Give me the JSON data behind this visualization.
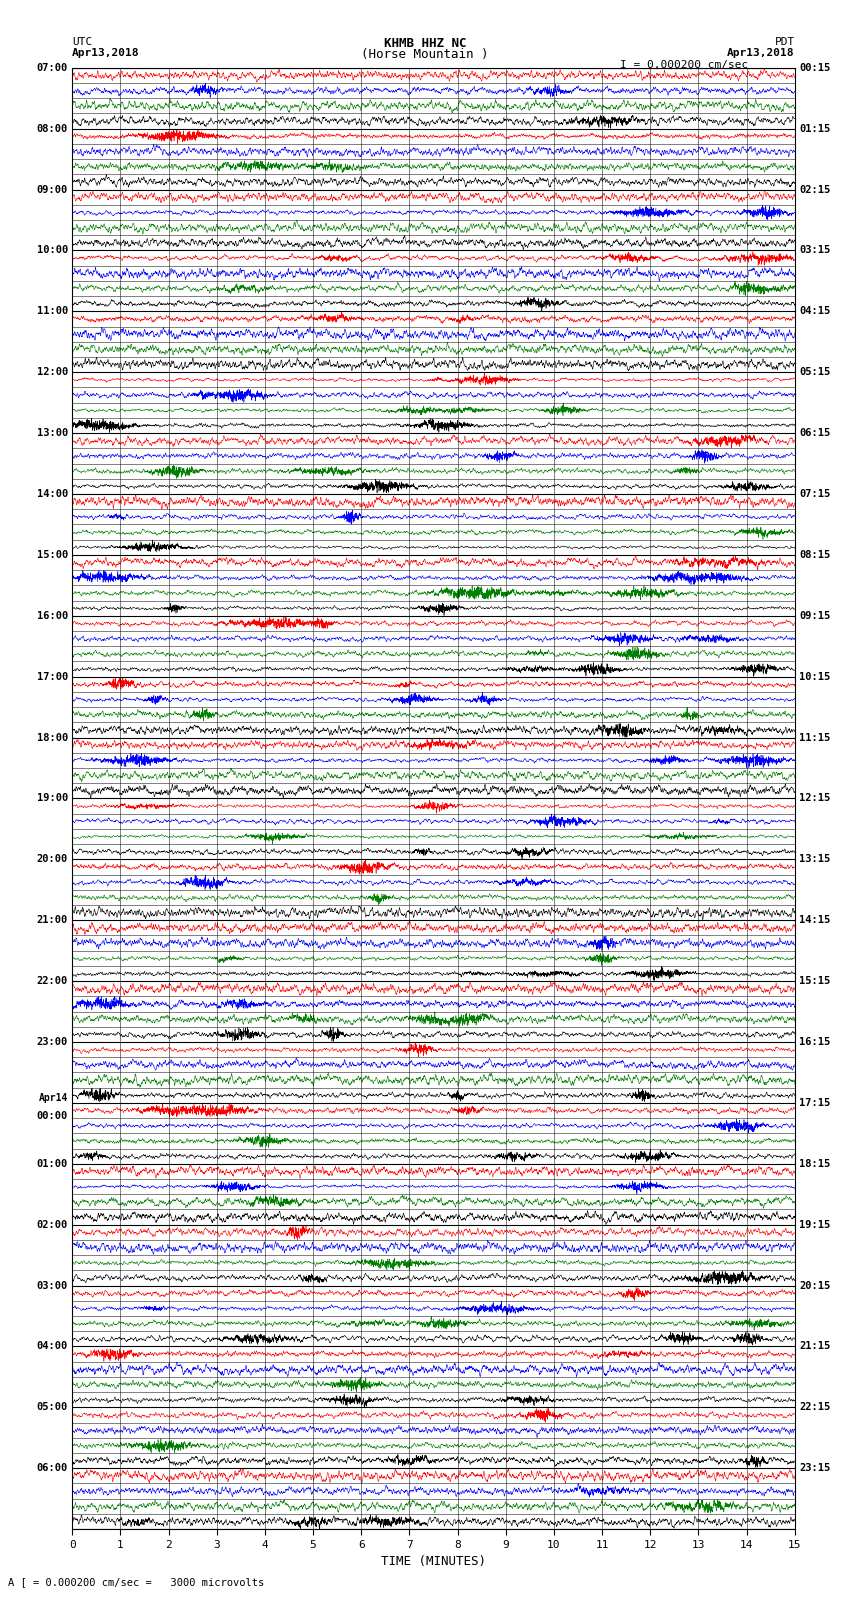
{
  "title_line1": "KHMB HHZ NC",
  "title_line2": "(Horse Mountain )",
  "scale_label": "I = 0.000200 cm/sec",
  "left_label": "UTC",
  "left_date": "Apr13,2018",
  "right_label": "PDT",
  "right_date": "Apr13,2018",
  "bottom_label": "TIME (MINUTES)",
  "bottom_note": "A [ = 0.000200 cm/sec =   3000 microvolts",
  "left_times": [
    "07:00",
    "08:00",
    "09:00",
    "10:00",
    "11:00",
    "12:00",
    "13:00",
    "14:00",
    "15:00",
    "16:00",
    "17:00",
    "18:00",
    "19:00",
    "20:00",
    "21:00",
    "22:00",
    "23:00",
    "Apr14\n00:00",
    "01:00",
    "02:00",
    "03:00",
    "04:00",
    "05:00",
    "06:00"
  ],
  "right_times": [
    "00:15",
    "01:15",
    "02:15",
    "03:15",
    "04:15",
    "05:15",
    "06:15",
    "07:15",
    "08:15",
    "09:15",
    "10:15",
    "11:15",
    "12:15",
    "13:15",
    "14:15",
    "15:15",
    "16:15",
    "17:15",
    "18:15",
    "19:15",
    "20:15",
    "21:15",
    "22:15",
    "23:15"
  ],
  "n_rows": 24,
  "sub_traces": 4,
  "colors": [
    "red",
    "blue",
    "green",
    "black"
  ],
  "bg_color": "white",
  "n_points": 4500,
  "amplitude": 0.48,
  "linewidth": 0.4
}
